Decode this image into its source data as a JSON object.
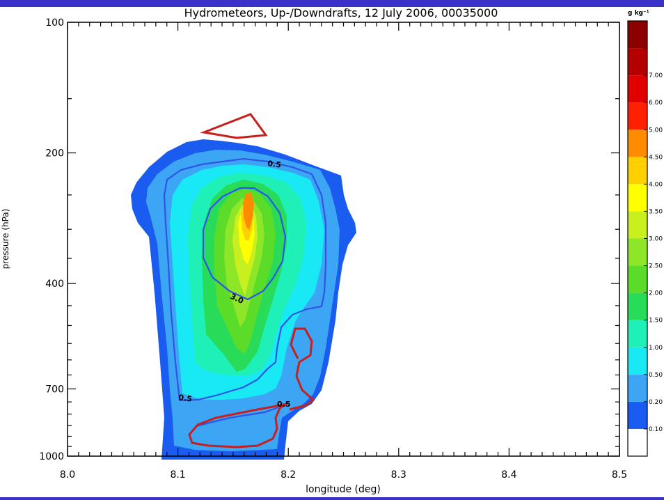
{
  "chart_data": {
    "type": "contour",
    "title": "Hydrometeors, Up-/Downdrafts, 12 July 2006, 00035000",
    "xlabel": "longitude (deg)",
    "ylabel": "pressure (hPa)",
    "xlim": [
      8.0,
      8.5
    ],
    "ylim": [
      1000,
      100
    ],
    "y_scale": "log",
    "x_ticks": [
      "8.0",
      "8.1",
      "8.2",
      "8.3",
      "8.4",
      "8.5"
    ],
    "x_tick_values": [
      8.0,
      8.1,
      8.2,
      8.3,
      8.4,
      8.5
    ],
    "y_ticks": [
      "100",
      "200",
      "400",
      "700",
      "1000"
    ],
    "y_tick_values": [
      100,
      200,
      400,
      700,
      1000
    ],
    "colorbar": {
      "unit": "g kg⁻¹",
      "levels": [
        {
          "label": "0.10",
          "color": "#1a5cf0"
        },
        {
          "label": "0.20",
          "color": "#3ca6f5"
        },
        {
          "label": "0.50",
          "color": "#19e8f5"
        },
        {
          "label": "1.00",
          "color": "#1ff0b8"
        },
        {
          "label": "1.50",
          "color": "#28dc5a"
        },
        {
          "label": "2.00",
          "color": "#5adc28"
        },
        {
          "label": "2.50",
          "color": "#8ee628"
        },
        {
          "label": "3.00",
          "color": "#c8f01e"
        },
        {
          "label": "3.50",
          "color": "#ffff00"
        },
        {
          "label": "4.00",
          "color": "#ffd000"
        },
        {
          "label": "4.50",
          "color": "#ff8c00"
        },
        {
          "label": "5.00",
          "color": "#ff2000"
        },
        {
          "label": "6.00",
          "color": "#e00000"
        },
        {
          "label": "7.00",
          "color": "#b40000"
        },
        {
          "label": "",
          "color": "#8c0000"
        }
      ],
      "bottom_color": "#ffffff"
    },
    "contours": [
      {
        "label": "0.5",
        "kind": "updraft",
        "color": "#2e55e6"
      },
      {
        "label": "3.0",
        "kind": "updraft",
        "color": "#2e55e6"
      },
      {
        "label": "0.5",
        "kind": "updraft",
        "color": "#2e55e6"
      },
      {
        "label": "0.5",
        "kind": "downdraft",
        "color": "#c81e1e"
      }
    ]
  }
}
